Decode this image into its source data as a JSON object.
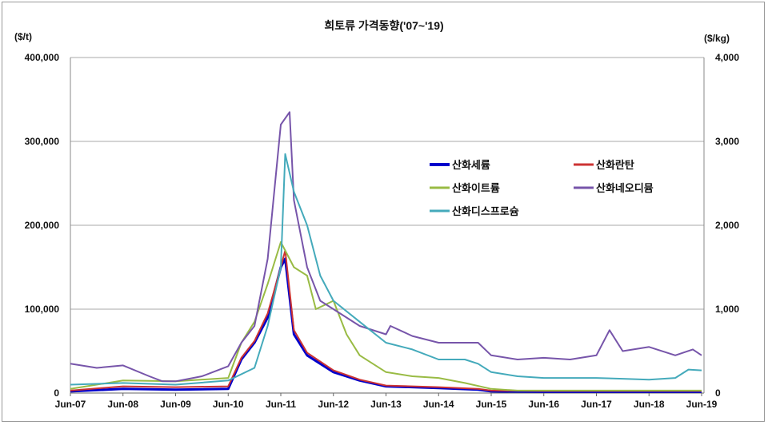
{
  "chart_data": {
    "type": "line",
    "title": "희토류 가격동향('07~'19)",
    "ylabel_left": "($/t)",
    "ylabel_right": "($/kg)",
    "ylim_left": [
      0,
      400000
    ],
    "ylim_right": [
      0,
      4000
    ],
    "yticks_left": [
      "0",
      "100,000",
      "200,000",
      "300,000",
      "400,000"
    ],
    "yticks_right": [
      "0",
      "1,000",
      "2,000",
      "3,000",
      "4,000"
    ],
    "xticks": [
      "Jun-07",
      "Jun-08",
      "Jun-09",
      "Jun-10",
      "Jun-11",
      "Jun-12",
      "Jun-13",
      "Jun-14",
      "Jun-15",
      "Jun-16",
      "Jun-17",
      "Jun-18",
      "Jun-19"
    ],
    "grid": true,
    "legend_position": "upper-right inside",
    "series": [
      {
        "name": "산화세륨",
        "color": "#0000cc",
        "width": 3,
        "points": [
          [
            "2007-06",
            2000
          ],
          [
            "2008-06",
            5000
          ],
          [
            "2009-06",
            4000
          ],
          [
            "2010-06",
            5000
          ],
          [
            "2010-09",
            40000
          ],
          [
            "2010-12",
            60000
          ],
          [
            "2011-03",
            90000
          ],
          [
            "2011-06",
            150000
          ],
          [
            "2011-07",
            160000
          ],
          [
            "2011-09",
            70000
          ],
          [
            "2011-12",
            45000
          ],
          [
            "2012-06",
            25000
          ],
          [
            "2012-12",
            15000
          ],
          [
            "2013-06",
            8000
          ],
          [
            "2014-06",
            6000
          ],
          [
            "2015-03",
            4000
          ],
          [
            "2015-06",
            2000
          ],
          [
            "2016-06",
            1500
          ],
          [
            "2017-06",
            1500
          ],
          [
            "2018-06",
            1500
          ],
          [
            "2019-06",
            1500
          ]
        ]
      },
      {
        "name": "산화란탄",
        "color": "#cc3333",
        "width": 2,
        "points": [
          [
            "2007-06",
            3000
          ],
          [
            "2008-06",
            8000
          ],
          [
            "2009-06",
            7000
          ],
          [
            "2010-06",
            8000
          ],
          [
            "2010-09",
            42000
          ],
          [
            "2010-12",
            62000
          ],
          [
            "2011-03",
            95000
          ],
          [
            "2011-06",
            150000
          ],
          [
            "2011-07",
            170000
          ],
          [
            "2011-09",
            75000
          ],
          [
            "2011-12",
            48000
          ],
          [
            "2012-06",
            27000
          ],
          [
            "2012-12",
            16000
          ],
          [
            "2013-06",
            9000
          ],
          [
            "2014-06",
            7000
          ],
          [
            "2015-03",
            5000
          ],
          [
            "2015-06",
            3000
          ],
          [
            "2016-06",
            2500
          ],
          [
            "2017-06",
            2500
          ],
          [
            "2018-06",
            2500
          ],
          [
            "2019-06",
            2500
          ]
        ]
      },
      {
        "name": "산화이트륨",
        "color": "#99bb44",
        "width": 2,
        "points": [
          [
            "2007-06",
            5000
          ],
          [
            "2008-06",
            15000
          ],
          [
            "2009-06",
            14000
          ],
          [
            "2010-06",
            18000
          ],
          [
            "2010-09",
            60000
          ],
          [
            "2010-12",
            85000
          ],
          [
            "2011-03",
            130000
          ],
          [
            "2011-06",
            180000
          ],
          [
            "2011-09",
            150000
          ],
          [
            "2011-12",
            140000
          ],
          [
            "2012-02",
            100000
          ],
          [
            "2012-06",
            110000
          ],
          [
            "2012-09",
            70000
          ],
          [
            "2012-12",
            45000
          ],
          [
            "2013-06",
            25000
          ],
          [
            "2013-12",
            20000
          ],
          [
            "2014-06",
            18000
          ],
          [
            "2014-12",
            12000
          ],
          [
            "2015-06",
            5000
          ],
          [
            "2015-12",
            3000
          ],
          [
            "2017-06",
            3000
          ],
          [
            "2019-06",
            3000
          ]
        ]
      },
      {
        "name": "산화네오디뮴",
        "color": "#7755aa",
        "width": 2,
        "points": [
          [
            "2007-06",
            35000
          ],
          [
            "2007-12",
            30000
          ],
          [
            "2008-06",
            33000
          ],
          [
            "2008-12",
            20000
          ],
          [
            "2009-03",
            14000
          ],
          [
            "2009-06",
            14000
          ],
          [
            "2009-12",
            20000
          ],
          [
            "2010-06",
            32000
          ],
          [
            "2010-09",
            60000
          ],
          [
            "2010-12",
            80000
          ],
          [
            "2011-03",
            160000
          ],
          [
            "2011-06",
            320000
          ],
          [
            "2011-08",
            335000
          ],
          [
            "2011-09",
            230000
          ],
          [
            "2011-12",
            150000
          ],
          [
            "2012-03",
            110000
          ],
          [
            "2012-06",
            100000
          ],
          [
            "2012-12",
            80000
          ],
          [
            "2013-06",
            70000
          ],
          [
            "2013-07",
            80000
          ],
          [
            "2013-12",
            68000
          ],
          [
            "2014-06",
            60000
          ],
          [
            "2014-12",
            60000
          ],
          [
            "2015-03",
            60000
          ],
          [
            "2015-06",
            45000
          ],
          [
            "2015-12",
            40000
          ],
          [
            "2016-06",
            42000
          ],
          [
            "2016-12",
            40000
          ],
          [
            "2017-06",
            45000
          ],
          [
            "2017-09",
            75000
          ],
          [
            "2017-12",
            50000
          ],
          [
            "2018-06",
            55000
          ],
          [
            "2018-12",
            45000
          ],
          [
            "2019-04",
            52000
          ],
          [
            "2019-06",
            45000
          ]
        ]
      },
      {
        "name": "산화디스프로슘",
        "color": "#44aabb",
        "width": 2,
        "points": [
          [
            "2007-06",
            10000
          ],
          [
            "2008-06",
            12000
          ],
          [
            "2009-06",
            10000
          ],
          [
            "2010-06",
            15000
          ],
          [
            "2010-12",
            30000
          ],
          [
            "2011-03",
            80000
          ],
          [
            "2011-06",
            150000
          ],
          [
            "2011-07",
            285000
          ],
          [
            "2011-09",
            240000
          ],
          [
            "2011-12",
            200000
          ],
          [
            "2012-03",
            140000
          ],
          [
            "2012-06",
            110000
          ],
          [
            "2012-12",
            85000
          ],
          [
            "2013-06",
            60000
          ],
          [
            "2013-12",
            52000
          ],
          [
            "2014-06",
            40000
          ],
          [
            "2014-12",
            40000
          ],
          [
            "2015-03",
            35000
          ],
          [
            "2015-06",
            25000
          ],
          [
            "2015-12",
            20000
          ],
          [
            "2016-06",
            18000
          ],
          [
            "2017-06",
            18000
          ],
          [
            "2017-12",
            17000
          ],
          [
            "2018-06",
            16000
          ],
          [
            "2018-12",
            18000
          ],
          [
            "2019-03",
            28000
          ],
          [
            "2019-06",
            27000
          ]
        ]
      }
    ]
  }
}
